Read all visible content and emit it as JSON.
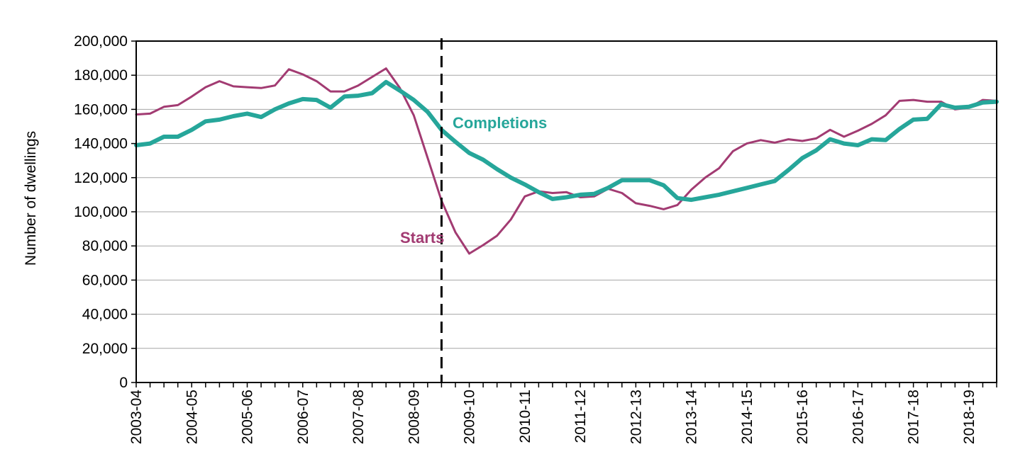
{
  "chart_data": {
    "type": "line",
    "title": "",
    "ylabel": "Number  of dwellings",
    "xlabel": "",
    "ylim": [
      0,
      200000
    ],
    "ytick_labels": [
      "0",
      "20,000",
      "40,000",
      "60,000",
      "80,000",
      "100,000",
      "120,000",
      "140,000",
      "160,000",
      "180,000",
      "200,000"
    ],
    "x_labels": [
      "2003-04",
      "2004-05",
      "2005-06",
      "2006-07",
      "2007-08",
      "2008-09",
      "2009-10",
      "2010-11",
      "2011-12",
      "2012-13",
      "2013-14",
      "2014-15",
      "2015-16",
      "2016-17",
      "2017-18",
      "2018-19"
    ],
    "quarters_per_label": 4,
    "grid": true,
    "legend": "inline labels",
    "marker_line": {
      "style": "dashed",
      "at_quarter_index": 22
    },
    "series": [
      {
        "name": "Completions",
        "color": "#26A69A",
        "label_text": "Completions",
        "values": [
          139000,
          140000,
          144000,
          144000,
          148000,
          153000,
          154000,
          156000,
          157500,
          155500,
          160000,
          163500,
          166000,
          165500,
          161000,
          167500,
          168000,
          169500,
          176000,
          171000,
          165500,
          158500,
          148000,
          141000,
          134500,
          130500,
          125000,
          120000,
          116000,
          111500,
          107500,
          108500,
          110000,
          110500,
          114000,
          118500,
          118500,
          118500,
          115500,
          108000,
          107000,
          108500,
          110000,
          112000,
          114000,
          116000,
          118000,
          124500,
          131500,
          136000,
          142500,
          140000,
          139000,
          142500,
          142000,
          148500,
          154000,
          154500,
          163000,
          161000,
          161500,
          164000,
          164500
        ]
      },
      {
        "name": "Starts",
        "color": "#A23B72",
        "label_text": "Starts",
        "values": [
          157000,
          157500,
          161500,
          162500,
          167500,
          173000,
          176500,
          173500,
          173000,
          172500,
          174000,
          183500,
          180500,
          176500,
          170500,
          170500,
          174000,
          179000,
          184000,
          172500,
          156500,
          131500,
          106500,
          88000,
          75500,
          80500,
          86000,
          95500,
          109000,
          112000,
          111000,
          111500,
          108500,
          109000,
          113500,
          111000,
          105000,
          103500,
          101500,
          104000,
          113000,
          120000,
          125500,
          135500,
          140000,
          142000,
          140500,
          142500,
          141500,
          143000,
          148000,
          144000,
          147500,
          151500,
          156500,
          165000,
          165500,
          164500,
          164500,
          160000,
          161000,
          165500,
          165000
        ]
      }
    ]
  }
}
